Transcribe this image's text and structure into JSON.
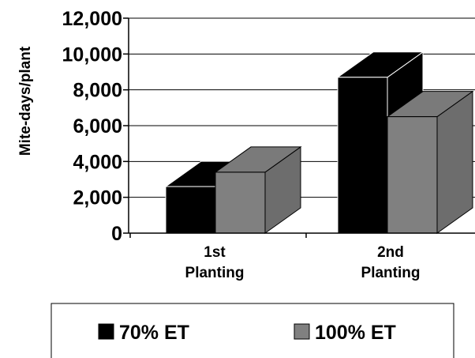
{
  "chart_data": {
    "type": "bar",
    "categories": [
      [
        "1st",
        "Planting"
      ],
      [
        "2nd",
        "Planting"
      ]
    ],
    "series": [
      {
        "name": "70% ET",
        "color": "#000000",
        "values": [
          2600,
          8700
        ]
      },
      {
        "name": "100% ET",
        "color": "#808080",
        "values": [
          3400,
          6500
        ]
      }
    ],
    "ylabel": "Mite-days/plant",
    "xlabel": "",
    "ylim": [
      0,
      12000
    ],
    "yticks": [
      "0",
      "2,000",
      "4,000",
      "6,000",
      "8,000",
      "10,000",
      "12,000"
    ],
    "grid": true,
    "style": "3d-column",
    "legend_position": "bottom"
  }
}
